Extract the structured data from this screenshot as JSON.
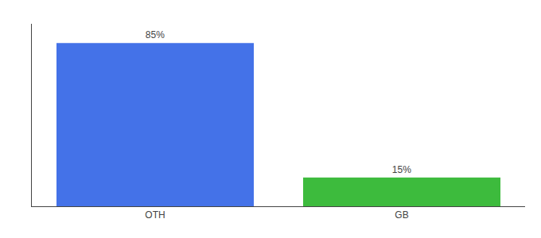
{
  "chart_data": {
    "type": "bar",
    "categories": [
      "OTH",
      "GB"
    ],
    "values": [
      85,
      15
    ],
    "value_labels": [
      "85%",
      "15%"
    ],
    "colors": [
      "#4472e8",
      "#3dbb3d"
    ],
    "ylim": [
      0,
      95
    ],
    "grid": false,
    "data_labels": true,
    "tick_labels": "x"
  }
}
